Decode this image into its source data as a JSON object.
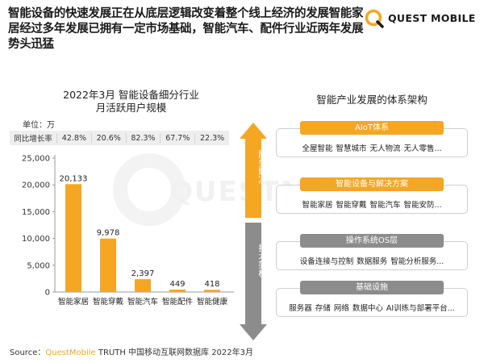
{
  "header": {
    "title": "智能设备的快速发展正在从底层逻辑改变着整个线上经济的发展智能家居经过多年发展已拥有一定市场基础，智能汽车、配件行业近两年发展势头迅猛"
  },
  "logo": {
    "text": "QUEST MOBILE"
  },
  "watermark": {
    "text": "QUESTMOBILE"
  },
  "left_panel": {
    "title_line1": "2022年3月 智能设备细分行业",
    "title_line2": "月活跃用户规模",
    "unit": "单位：万",
    "growth_label": "同比增长率",
    "growth_values": [
      "42.8%",
      "20.6%",
      "82.3%",
      "67.7%",
      "22.3%"
    ]
  },
  "chart_data": {
    "type": "bar",
    "title": "2022年3月 智能设备细分行业 月活跃用户规模",
    "unit": "万",
    "categories": [
      "智能家居",
      "智能穿戴",
      "智能汽车",
      "智能配件",
      "智能健康"
    ],
    "values": [
      20133,
      9978,
      2397,
      449,
      418
    ],
    "data_labels": [
      "20,133",
      "9,978",
      "2,397",
      "449",
      "418"
    ],
    "y_ticks": [
      "0",
      "5,000",
      "10,000",
      "15,000",
      "20,000",
      "25,000"
    ],
    "ylim": [
      0,
      25000
    ],
    "yoy_growth": [
      "42.8%",
      "20.6%",
      "82.3%",
      "67.7%",
      "22.3%"
    ],
    "bar_color": "#f5a623",
    "grid": false,
    "legend": "none"
  },
  "arrow": {
    "top_label": "服务解决",
    "bottom_label": "技术架构",
    "top_color": "#f5a623",
    "bottom_color": "#8c8c8c"
  },
  "right_panel": {
    "title": "智能产业发展的体系架构",
    "layers": [
      {
        "head": "AIoT体系",
        "style": "orange",
        "items": [
          "全屋智能",
          "智慧城市",
          "无人物流",
          "无人零售..."
        ]
      },
      {
        "head": "智能设备与解决方案",
        "style": "orange",
        "items": [
          "智能家居",
          "智能穿戴",
          "智能汽车",
          "智能安防..."
        ]
      },
      {
        "head": "操作系统OS层",
        "style": "gray",
        "items": [
          "设备连接与控制",
          "数据服务",
          "智能分析服务..."
        ]
      },
      {
        "head": "基础设施",
        "style": "gray",
        "items": [
          "服务器",
          "存储",
          "网络",
          "数据中心",
          "AI训练与部署平台..."
        ]
      }
    ]
  },
  "source": {
    "prefix": "Source：",
    "brand": "QuestMobile",
    "rest": " TRUTH 中国移动互联网数据库 2022年3月"
  },
  "colors": {
    "accent": "#f5a623",
    "gray": "#8c8c8c"
  }
}
